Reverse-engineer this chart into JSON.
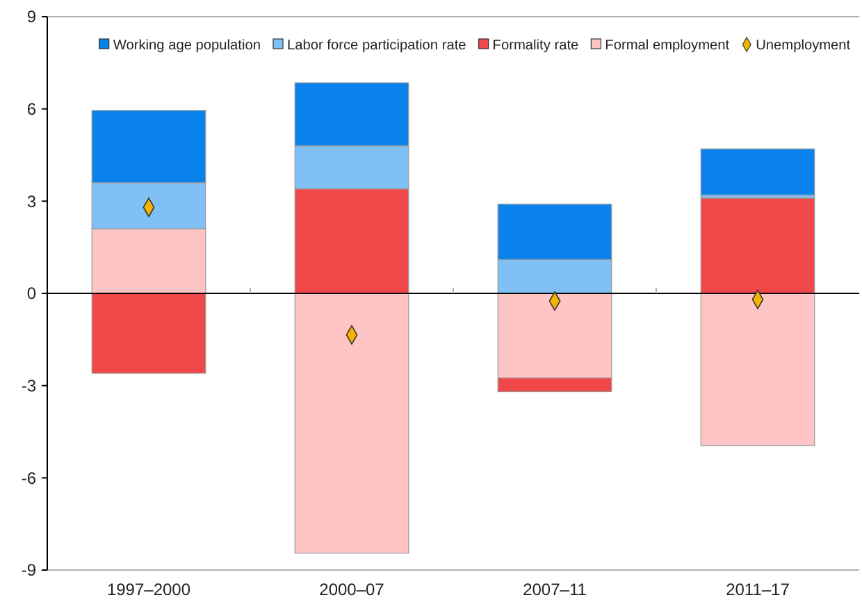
{
  "chart_data": {
    "type": "bar",
    "stacked": true,
    "categories": [
      "1997–2000",
      "2000–07",
      "2007–11",
      "2011–17"
    ],
    "series": [
      {
        "name": "Formal employment",
        "color": "#ffc4c4",
        "values": [
          2.1,
          -8.45,
          -2.75,
          -4.95
        ]
      },
      {
        "name": "Formality rate",
        "color": "#f04848",
        "values": [
          -2.6,
          3.4,
          -0.45,
          3.1
        ]
      },
      {
        "name": "Labor force participation rate",
        "color": "#80c0f4",
        "values": [
          1.5,
          1.4,
          1.1,
          0.1
        ]
      },
      {
        "name": "Working age population",
        "color": "#0a82ec",
        "values": [
          2.35,
          2.05,
          1.8,
          1.5
        ]
      },
      {
        "name": "Unemployment",
        "type": "scatter",
        "marker": "diamond",
        "color": "#f5b400",
        "x": [
          "1997–2000",
          "2000–07",
          "2007–11",
          "2011–17"
        ],
        "values": [
          2.8,
          -1.35,
          -0.25,
          -0.2
        ]
      }
    ],
    "ylim": [
      -9,
      9
    ],
    "yticks": [
      -9,
      -6,
      -3,
      0,
      3,
      6,
      9
    ],
    "legend": "top"
  }
}
